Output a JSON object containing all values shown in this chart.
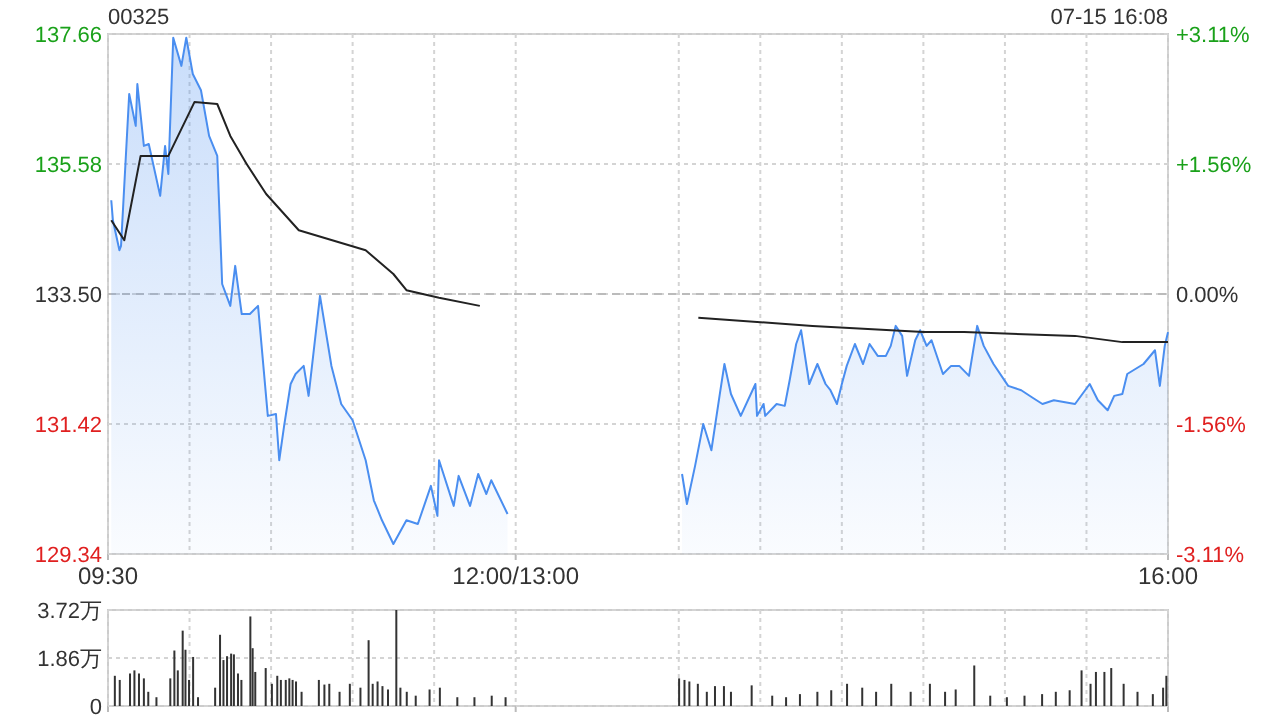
{
  "chart_data": [
    {
      "type": "line",
      "title": "00325",
      "annotations": [
        "07-15 16:08"
      ],
      "grid": true,
      "xlim": [
        9.5,
        16
      ],
      "xticks": [
        {
          "value": 9.5,
          "label": "09:30"
        },
        {
          "value": 10,
          "label": null
        },
        {
          "value": 10.5,
          "label": null
        },
        {
          "value": 11,
          "label": null
        },
        {
          "value": 11.5,
          "label": null
        },
        {
          "value": 12,
          "label": "12:00/13:00"
        },
        {
          "value": 13,
          "label": null
        },
        {
          "value": 13.5,
          "label": null
        },
        {
          "value": 14,
          "label": null
        },
        {
          "value": 14.5,
          "label": null
        },
        {
          "value": 15,
          "label": null
        },
        {
          "value": 15.5,
          "label": null
        },
        {
          "value": 16,
          "label": "16:00"
        }
      ],
      "ylim": [
        129.34,
        137.66
      ],
      "yticks": [
        129.34,
        131.42,
        {
          "value": 133.5,
          "label": "133.50"
        },
        135.58,
        137.66
      ],
      "y2lim": [
        -3.11,
        3.11
      ],
      "y2ticks": [
        {
          "value": -3.11,
          "label": "-3.11%"
        },
        {
          "value": -1.56,
          "label": "-1.56%"
        },
        {
          "value": 0,
          "label": "0.00%"
        },
        {
          "value": 1.56,
          "label": "+1.56%"
        },
        {
          "value": 3.11,
          "label": "+3.11%"
        }
      ],
      "ref_lines": [
        {
          "axis": "y",
          "value": 133.5,
          "line_style": "dashed",
          "color": "#bbbbbb"
        }
      ],
      "series": [
        {
          "type": "area",
          "color": "#4a8ef0",
          "x": [
            9.52,
            9.53,
            9.57,
            9.58,
            9.63,
            9.67,
            9.68,
            9.72,
            9.75,
            9.82,
            9.85,
            9.87,
            9.9,
            9.95,
            9.98,
            10.02,
            10.07,
            10.12,
            10.17,
            10.2,
            10.25,
            10.28,
            10.32,
            10.37,
            10.42,
            10.48,
            10.53,
            10.55,
            10.58,
            10.62,
            10.65,
            10.7,
            10.73,
            10.8,
            10.87,
            10.93,
            11,
            11.08,
            11.13,
            11.18,
            11.25,
            11.33,
            11.4,
            11.48,
            11.52,
            11.53,
            11.62,
            11.65,
            11.72,
            11.77,
            11.82,
            11.85,
            11.95,
            13.02,
            13.05,
            13.1,
            13.15,
            13.2,
            13.25,
            13.28,
            13.32,
            13.38,
            13.47,
            13.48,
            13.52,
            13.53,
            13.6,
            13.65,
            13.68,
            13.72,
            13.75,
            13.8,
            13.85,
            13.9,
            13.93,
            13.97,
            14,
            14.03,
            14.08,
            14.13,
            14.17,
            14.22,
            14.27,
            14.3,
            14.33,
            14.37,
            14.4,
            14.45,
            14.48,
            14.52,
            14.55,
            14.62,
            14.67,
            14.72,
            14.78,
            14.83,
            14.87,
            14.93,
            15.02,
            15.1,
            15.17,
            15.23,
            15.3,
            15.43,
            15.52,
            15.57,
            15.63,
            15.67,
            15.72,
            15.75,
            15.85,
            15.92,
            15.95,
            15.98,
            16
          ],
          "values": [
            135.0,
            134.68,
            134.2,
            134.27,
            136.7,
            136.19,
            136.86,
            135.87,
            135.9,
            135.07,
            135.87,
            135.42,
            137.6,
            137.15,
            137.6,
            137.02,
            136.76,
            136.03,
            135.71,
            133.66,
            133.31,
            133.95,
            133.18,
            133.18,
            133.31,
            131.55,
            131.58,
            130.84,
            131.39,
            132.06,
            132.22,
            132.35,
            131.87,
            133.47,
            132.35,
            131.74,
            131.48,
            130.84,
            130.2,
            129.88,
            129.5,
            129.88,
            129.82,
            130.43,
            129.95,
            130.84,
            130.11,
            130.59,
            130.11,
            130.62,
            130.3,
            130.52,
            129.98,
            130.62,
            130.14,
            130.75,
            131.42,
            131.0,
            131.87,
            132.38,
            131.9,
            131.55,
            132.06,
            131.55,
            131.74,
            131.55,
            131.74,
            131.71,
            132.12,
            132.7,
            132.92,
            132.06,
            132.38,
            132.06,
            131.96,
            131.74,
            132.06,
            132.35,
            132.7,
            132.38,
            132.7,
            132.51,
            132.51,
            132.67,
            132.99,
            132.83,
            132.19,
            132.76,
            132.92,
            132.67,
            132.76,
            132.22,
            132.35,
            132.35,
            132.19,
            132.99,
            132.67,
            132.38,
            132.03,
            131.96,
            131.84,
            131.74,
            131.8,
            131.74,
            132.06,
            131.8,
            131.64,
            131.87,
            131.9,
            132.22,
            132.38,
            132.6,
            132.03,
            132.67,
            132.89
          ]
        },
        {
          "color": "#222222",
          "x": [
            9.52,
            9.6,
            9.7,
            9.87,
            10.03,
            10.17,
            10.25,
            10.35,
            10.47,
            10.67,
            11.08,
            11.25,
            11.33,
            11.53,
            11.78,
            13.12,
            13.82,
            14.5,
            14.75,
            15.43,
            15.72,
            16
          ],
          "values": [
            134.68,
            134.36,
            135.71,
            135.71,
            136.57,
            136.54,
            136.03,
            135.58,
            135.1,
            134.52,
            134.2,
            133.82,
            133.56,
            133.44,
            133.31,
            133.12,
            132.99,
            132.89,
            132.89,
            132.83,
            132.73,
            132.73
          ]
        }
      ]
    },
    {
      "type": "bar",
      "color": "#333333",
      "grid": true,
      "tick_labels": "y",
      "xlim": [
        9.5,
        16
      ],
      "ylim": [
        0,
        3.72
      ],
      "yticks": [
        0,
        {
          "value": 1.86,
          "label": "1.86万"
        },
        {
          "value": 3.72,
          "label": "3.72万"
        }
      ],
      "x": [
        9.542,
        9.572,
        9.635,
        9.662,
        9.69,
        9.72,
        9.747,
        9.797,
        9.882,
        9.907,
        9.928,
        9.958,
        9.975,
        9.997,
        10.022,
        10.052,
        10.157,
        10.187,
        10.208,
        10.23,
        10.255,
        10.272,
        10.297,
        10.318,
        10.373,
        10.387,
        10.403,
        10.467,
        10.505,
        10.538,
        10.56,
        10.59,
        10.612,
        10.632,
        10.653,
        10.687,
        10.793,
        10.827,
        10.857,
        10.92,
        10.983,
        11.048,
        11.098,
        11.123,
        11.153,
        11.183,
        11.217,
        11.268,
        11.293,
        11.332,
        11.387,
        11.472,
        11.535,
        11.642,
        11.747,
        11.853,
        11.938,
        13.002,
        13.035,
        13.065,
        13.117,
        13.172,
        13.222,
        13.277,
        13.32,
        13.447,
        13.573,
        13.658,
        13.743,
        13.85,
        13.935,
        14.032,
        14.125,
        14.21,
        14.303,
        14.422,
        14.54,
        14.633,
        14.698,
        14.812,
        14.91,
        15.012,
        15.12,
        15.228,
        15.312,
        15.397,
        15.47,
        15.525,
        15.558,
        15.61,
        15.652,
        15.728,
        15.813,
        15.907,
        15.97,
        15.99
      ],
      "values": [
        1.17,
        1.01,
        1.26,
        1.38,
        1.26,
        1.07,
        0.55,
        0.34,
        1.07,
        2.15,
        1.38,
        2.92,
        2.18,
        1.01,
        1.9,
        0.34,
        0.71,
        2.76,
        1.78,
        1.93,
        2.03,
        2.0,
        1.26,
        1.01,
        3.47,
        2.24,
        1.32,
        1.47,
        0.86,
        1.17,
        1.01,
        1.01,
        1.07,
        1.01,
        0.95,
        0.55,
        1.01,
        0.83,
        0.86,
        0.55,
        0.86,
        0.71,
        2.55,
        0.86,
        0.95,
        0.77,
        0.64,
        3.72,
        0.71,
        0.55,
        0.4,
        0.64,
        0.71,
        0.34,
        0.34,
        0.4,
        0.34,
        1.07,
        1.01,
        0.95,
        0.86,
        0.55,
        0.77,
        0.77,
        0.55,
        0.8,
        0.4,
        0.34,
        0.46,
        0.55,
        0.61,
        0.86,
        0.71,
        0.55,
        0.86,
        0.55,
        0.86,
        0.55,
        0.64,
        1.57,
        0.4,
        0.34,
        0.4,
        0.46,
        0.55,
        0.61,
        1.38,
        0.86,
        1.32,
        1.32,
        1.47,
        0.86,
        0.55,
        0.46,
        0.71,
        1.17
      ]
    }
  ]
}
